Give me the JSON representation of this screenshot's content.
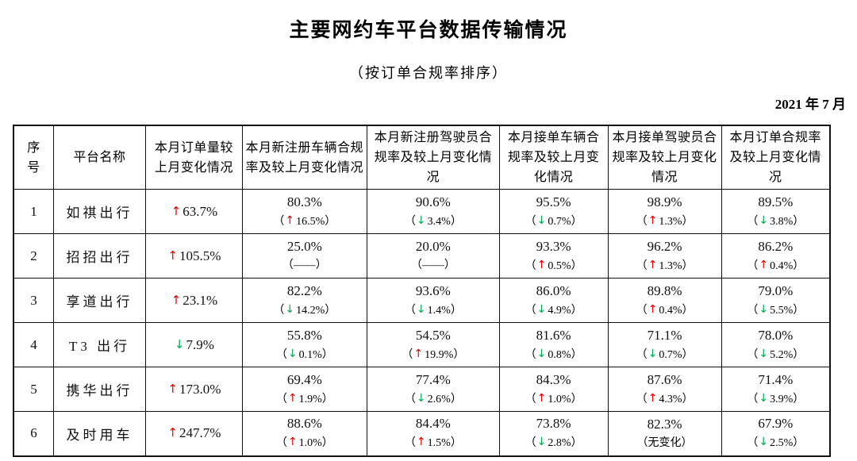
{
  "page": {
    "title": "主要网约车平台数据传输情况",
    "subtitle": "（按订单合规率排序）",
    "date": "2021 年 7 月"
  },
  "colors": {
    "up": "#e60000",
    "down": "#00a651"
  },
  "symbols": {
    "up_arrow": "↑",
    "down_arrow": "↓",
    "paren_open": "（",
    "paren_close": "）"
  },
  "table": {
    "headers": [
      "序号",
      "平台名称",
      "本月订单量较上月变化情况",
      "本月新注册车辆合规率及较上月变化情况",
      "本月新注册驾驶员合规率及较上月变化情况",
      "本月接单车辆合规率及较上月变化情况",
      "本月接单驾驶员合规率及较上月变化情况",
      "本月订单合规率及较上月变化情况"
    ],
    "column_widths_pct": [
      4.9,
      11.3,
      11.8,
      15.3,
      16.2,
      13.3,
      13.9,
      13.3
    ],
    "rows": [
      {
        "index": "1",
        "platform": "如祺出行",
        "order_change": {
          "dir": "up",
          "value": "63.7%"
        },
        "metrics": [
          {
            "rate": "80.3%",
            "dir": "up",
            "change": "16.5%"
          },
          {
            "rate": "90.6%",
            "dir": "down",
            "change": "3.4%"
          },
          {
            "rate": "95.5%",
            "dir": "down",
            "change": "0.7%"
          },
          {
            "rate": "98.9%",
            "dir": "up",
            "change": "1.3%"
          },
          {
            "rate": "89.5%",
            "dir": "down",
            "change": "3.8%"
          }
        ]
      },
      {
        "index": "2",
        "platform": "招招出行",
        "order_change": {
          "dir": "up",
          "value": "105.5%"
        },
        "metrics": [
          {
            "rate": "25.0%",
            "dir": "none",
            "change": "——"
          },
          {
            "rate": "20.0%",
            "dir": "none",
            "change": "——"
          },
          {
            "rate": "93.3%",
            "dir": "up",
            "change": "0.5%"
          },
          {
            "rate": "96.2%",
            "dir": "up",
            "change": "1.3%"
          },
          {
            "rate": "86.2%",
            "dir": "up",
            "change": "0.4%"
          }
        ]
      },
      {
        "index": "3",
        "platform": "享道出行",
        "order_change": {
          "dir": "up",
          "value": "23.1%"
        },
        "metrics": [
          {
            "rate": "82.2%",
            "dir": "down",
            "change": "14.2%"
          },
          {
            "rate": "93.6%",
            "dir": "down",
            "change": "1.4%"
          },
          {
            "rate": "86.0%",
            "dir": "down",
            "change": "4.9%"
          },
          {
            "rate": "89.8%",
            "dir": "up",
            "change": "0.4%"
          },
          {
            "rate": "79.0%",
            "dir": "down",
            "change": "5.5%"
          }
        ]
      },
      {
        "index": "4",
        "platform": "T3 出行",
        "order_change": {
          "dir": "down",
          "value": "7.9%"
        },
        "metrics": [
          {
            "rate": "55.8%",
            "dir": "down",
            "change": "0.1%"
          },
          {
            "rate": "54.5%",
            "dir": "up",
            "change": "19.9%"
          },
          {
            "rate": "81.6%",
            "dir": "down",
            "change": "0.8%"
          },
          {
            "rate": "71.1%",
            "dir": "down",
            "change": "0.7%"
          },
          {
            "rate": "78.0%",
            "dir": "down",
            "change": "5.2%"
          }
        ]
      },
      {
        "index": "5",
        "platform": "携华出行",
        "order_change": {
          "dir": "up",
          "value": "173.0%"
        },
        "metrics": [
          {
            "rate": "69.4%",
            "dir": "up",
            "change": "1.9%"
          },
          {
            "rate": "77.4%",
            "dir": "down",
            "change": "2.6%"
          },
          {
            "rate": "84.3%",
            "dir": "up",
            "change": "1.0%"
          },
          {
            "rate": "87.6%",
            "dir": "up",
            "change": "4.3%"
          },
          {
            "rate": "71.4%",
            "dir": "down",
            "change": "3.9%"
          }
        ]
      },
      {
        "index": "6",
        "platform": "及时用车",
        "order_change": {
          "dir": "up",
          "value": "247.7%"
        },
        "metrics": [
          {
            "rate": "88.6%",
            "dir": "up",
            "change": "1.0%"
          },
          {
            "rate": "84.4%",
            "dir": "up",
            "change": "1.5%"
          },
          {
            "rate": "73.8%",
            "dir": "down",
            "change": "2.8%"
          },
          {
            "rate": "82.3%",
            "dir": "none",
            "change": "无变化"
          },
          {
            "rate": "67.9%",
            "dir": "down",
            "change": "2.5%"
          }
        ]
      }
    ]
  }
}
